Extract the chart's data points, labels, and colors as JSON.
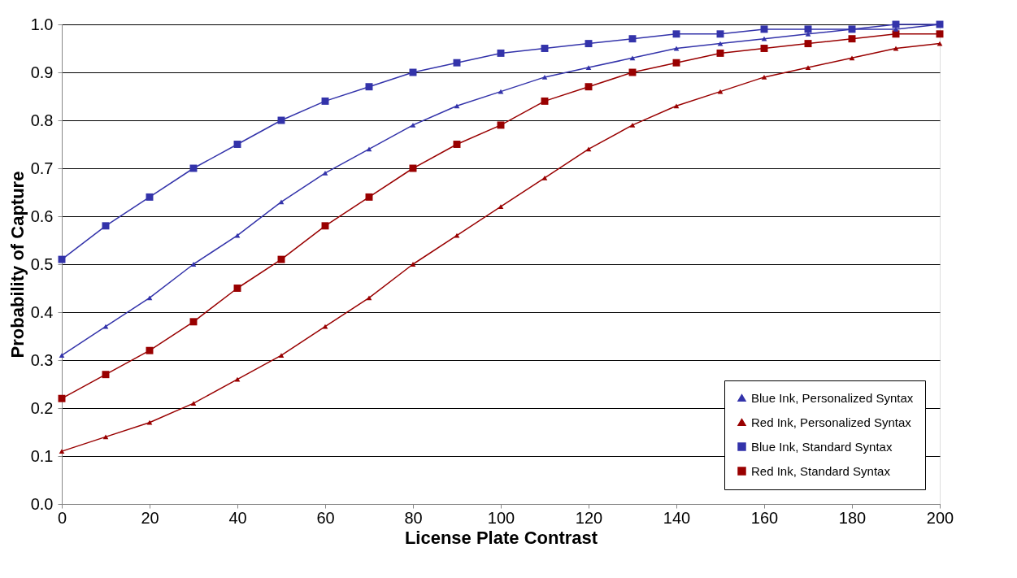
{
  "chart_data": {
    "type": "line",
    "xlabel": "License Plate Contrast",
    "ylabel": "Probability of Capture",
    "x": [
      0,
      10,
      20,
      30,
      40,
      50,
      60,
      70,
      80,
      90,
      100,
      110,
      120,
      130,
      140,
      150,
      160,
      170,
      180,
      190,
      200
    ],
    "xlim": [
      0,
      200
    ],
    "xticks": [
      0,
      20,
      40,
      60,
      80,
      100,
      120,
      140,
      160,
      180,
      200
    ],
    "ylim": [
      0,
      1
    ],
    "yticks": [
      {
        "value": 0,
        "label": "0.0"
      },
      0.1,
      0.2,
      0.3,
      0.4,
      0.5,
      0.6,
      0.7,
      0.8,
      0.9,
      {
        "value": 1,
        "label": "1.0"
      }
    ],
    "grid": "y",
    "legend": "bottom right",
    "line_style": "solid",
    "series": [
      {
        "name": "Blue Ink, Personalized Syntax",
        "color": "#3333aa",
        "marker": "triangle",
        "values": [
          0.31,
          0.37,
          0.43,
          0.5,
          0.56,
          0.63,
          0.69,
          0.74,
          0.79,
          0.83,
          0.86,
          0.89,
          0.91,
          0.93,
          0.95,
          0.96,
          0.97,
          0.98,
          0.99,
          0.99,
          1.0
        ]
      },
      {
        "name": "Red Ink, Personalized Syntax",
        "color": "#990000",
        "marker": "triangle",
        "values": [
          0.11,
          0.14,
          0.17,
          0.21,
          0.26,
          0.31,
          0.37,
          0.43,
          0.5,
          0.56,
          0.62,
          0.68,
          0.74,
          0.79,
          0.83,
          0.86,
          0.89,
          0.91,
          0.93,
          0.95,
          0.96
        ]
      },
      {
        "name": "Blue Ink, Standard Syntax",
        "color": "#3333aa",
        "marker": "square",
        "values": [
          0.51,
          0.58,
          0.64,
          0.7,
          0.75,
          0.8,
          0.84,
          0.87,
          0.9,
          0.92,
          0.94,
          0.95,
          0.96,
          0.97,
          0.98,
          0.98,
          0.99,
          0.99,
          0.99,
          1.0,
          1.0
        ]
      },
      {
        "name": "Red Ink, Standard Syntax",
        "color": "#990000",
        "marker": "square",
        "values": [
          0.22,
          0.27,
          0.32,
          0.38,
          0.45,
          0.51,
          0.58,
          0.64,
          0.7,
          0.75,
          0.79,
          0.84,
          0.87,
          0.9,
          0.92,
          0.94,
          0.95,
          0.96,
          0.97,
          0.98,
          0.98
        ]
      }
    ]
  }
}
